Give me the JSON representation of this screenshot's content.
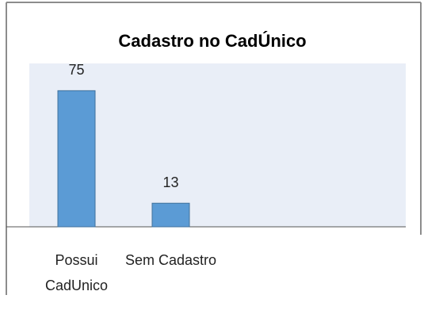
{
  "chart_data": {
    "type": "bar",
    "title": "Cadastro no CadÚnico",
    "categories": [
      "Possui CadUnico",
      "Sem Cadastro"
    ],
    "values": [
      75,
      13
    ],
    "color": "#5b9bd5",
    "ylim": [
      0,
      90
    ]
  }
}
